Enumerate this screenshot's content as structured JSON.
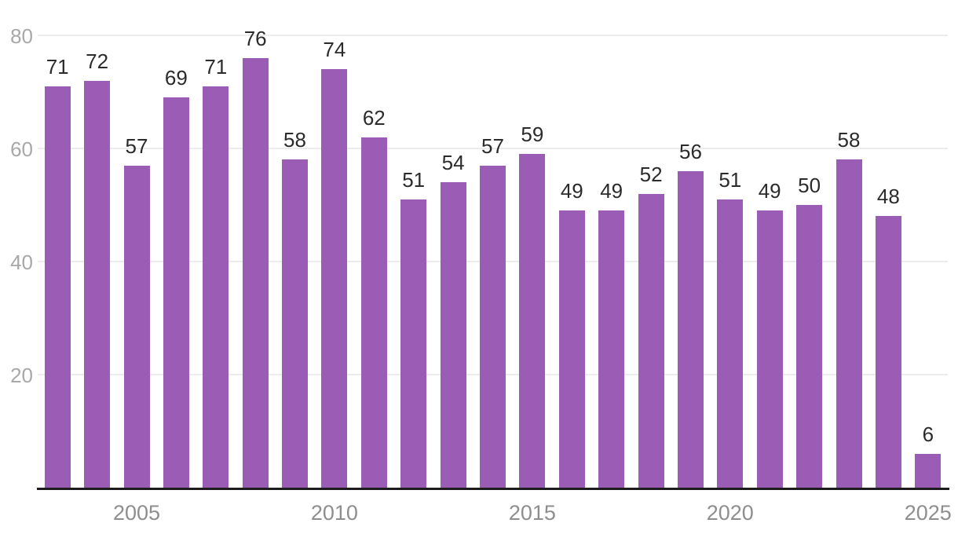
{
  "chart_data": {
    "type": "bar",
    "title": "",
    "xlabel": "",
    "ylabel": "",
    "categories": [
      "2003",
      "2004",
      "2005",
      "2006",
      "2007",
      "2008",
      "2009",
      "2010",
      "2011",
      "2012",
      "2013",
      "2014",
      "2015",
      "2016",
      "2017",
      "2018",
      "2019",
      "2020",
      "2021",
      "2022",
      "2023",
      "2024",
      "2025"
    ],
    "values": [
      71,
      72,
      57,
      69,
      71,
      76,
      58,
      74,
      62,
      51,
      54,
      57,
      59,
      49,
      49,
      52,
      56,
      51,
      49,
      50,
      58,
      48,
      6
    ],
    "value_labels_shown": true,
    "ylim": [
      0,
      80
    ],
    "y_ticks": [
      20,
      40,
      60,
      80
    ],
    "x_tick_labels": [
      "2005",
      "2010",
      "2015",
      "2020",
      "2025"
    ],
    "grid": "horizontal",
    "legend_position": "none",
    "colors": {
      "bar": "#9a5cb4",
      "value_label": "#2b2b2b",
      "y_tick_label": "#a8a8a8",
      "x_tick_label": "#8e8e8e",
      "gridline": "#ececec",
      "axis_line": "#1c1c1c",
      "background": "#ffffff"
    }
  }
}
